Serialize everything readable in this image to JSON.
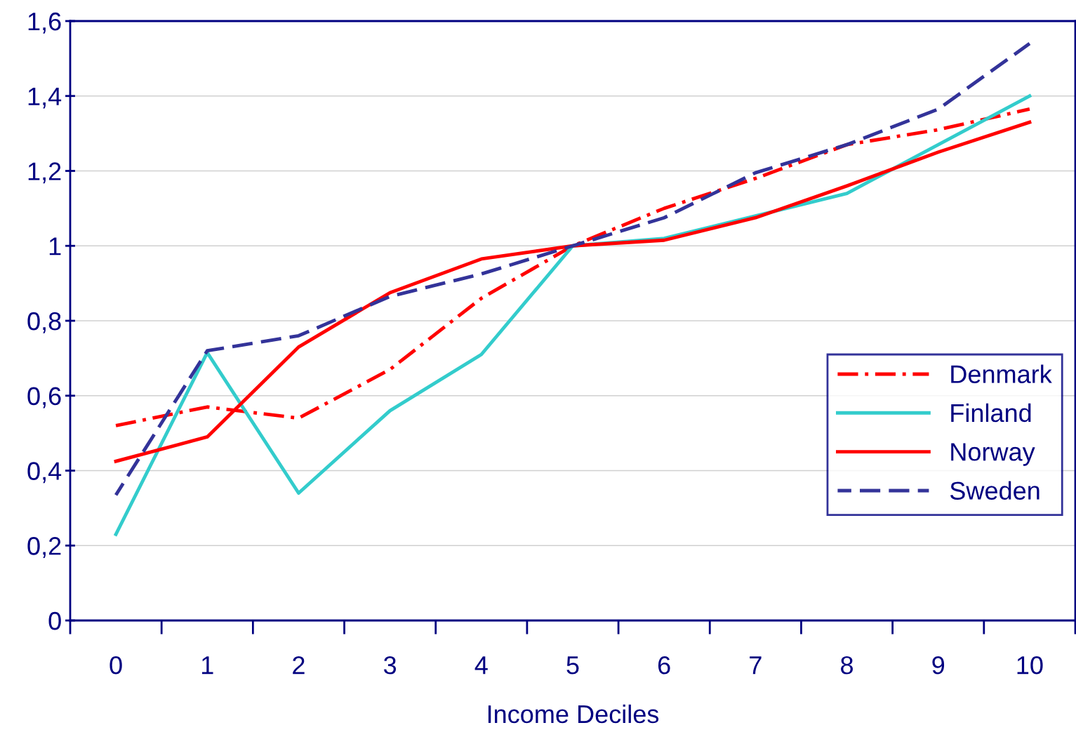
{
  "chart_data": {
    "type": "line",
    "xlabel": "Income Deciles",
    "categories": [
      "0",
      "1",
      "2",
      "3",
      "4",
      "5",
      "6",
      "7",
      "8",
      "9",
      "10"
    ],
    "series": [
      {
        "name": "Denmark",
        "color": "#ff0000",
        "line_style": "dashdot",
        "values": [
          0.52,
          0.57,
          0.54,
          0.67,
          0.86,
          1.0,
          1.1,
          1.18,
          1.27,
          1.31,
          1.365
        ]
      },
      {
        "name": "Finland",
        "color": "#33cccc",
        "line_style": "solid",
        "values": [
          0.23,
          0.715,
          0.34,
          0.56,
          0.71,
          1.0,
          1.02,
          1.08,
          1.14,
          1.27,
          1.4
        ]
      },
      {
        "name": "Norway",
        "color": "#ff0000",
        "line_style": "solid",
        "values": [
          0.425,
          0.49,
          0.73,
          0.875,
          0.965,
          1.0,
          1.015,
          1.075,
          1.16,
          1.25,
          1.33
        ]
      },
      {
        "name": "Sweden",
        "color": "#333399",
        "line_style": "dashed",
        "values": [
          0.335,
          0.72,
          0.76,
          0.865,
          0.925,
          1.0,
          1.075,
          1.195,
          1.27,
          1.365,
          1.54
        ]
      }
    ],
    "ylim": [
      0,
      1.6
    ],
    "yticks": [
      0,
      {
        "value": 0.2,
        "label": "0,2"
      },
      {
        "value": 0.4,
        "label": "0,4"
      },
      {
        "value": 0.6,
        "label": "0,6"
      },
      {
        "value": 0.8,
        "label": "0,8"
      },
      1,
      {
        "value": 1.2,
        "label": "1,2"
      },
      {
        "value": 1.4,
        "label": "1,4"
      },
      {
        "value": 1.6,
        "label": "1,6"
      }
    ],
    "grid": "y",
    "legend": "right",
    "marker": "none"
  }
}
